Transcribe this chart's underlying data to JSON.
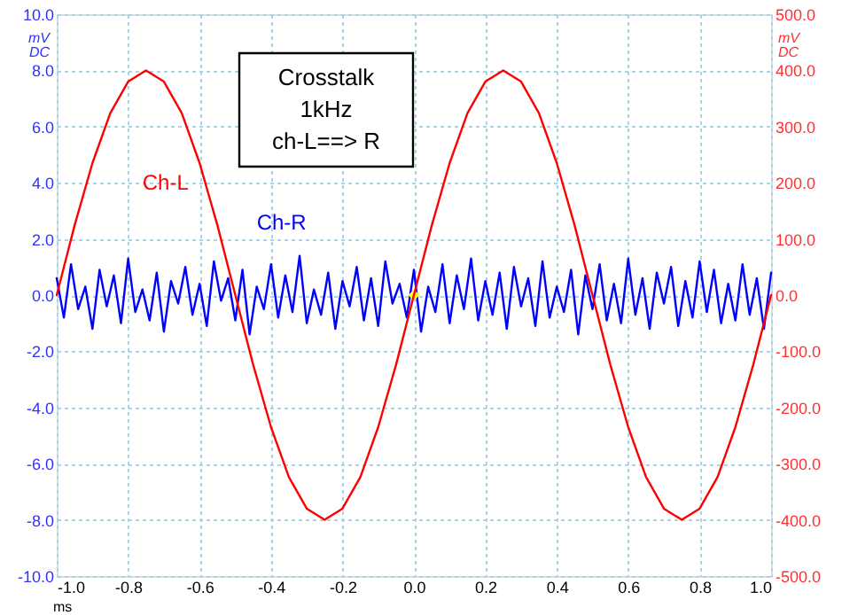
{
  "chart_data": {
    "type": "line",
    "annotations": [
      "Crosstalk",
      "1kHz",
      "ch-L==> R"
    ],
    "xlabel": "ms",
    "ylabel": "mV DC",
    "y2label": "mV DC",
    "xlim": [
      -1.0,
      1.0
    ],
    "xticks": [
      {
        "value": -1.0,
        "label": "-1.0"
      },
      {
        "value": -0.8,
        "label": "-0.8"
      },
      {
        "value": -0.6,
        "label": "-0.6"
      },
      {
        "value": -0.4,
        "label": "-0.4"
      },
      {
        "value": -0.2,
        "label": "-0.2"
      },
      {
        "value": 0,
        "label": "0.0"
      },
      {
        "value": 0.2,
        "label": "0.2"
      },
      {
        "value": 0.4,
        "label": "0.4"
      },
      {
        "value": 0.6,
        "label": "0.6"
      },
      {
        "value": 0.8,
        "label": "0.8"
      },
      {
        "value": 1.0,
        "label": "1.0"
      }
    ],
    "ylim": [
      -10,
      10
    ],
    "yticks": [
      {
        "value": -10,
        "label": "-10.0"
      },
      {
        "value": -8,
        "label": "-8.0"
      },
      {
        "value": -6,
        "label": "-6.0"
      },
      {
        "value": -4,
        "label": "-4.0"
      },
      {
        "value": -2,
        "label": "-2.0"
      },
      {
        "value": 0,
        "label": "0.0"
      },
      {
        "value": 2,
        "label": "2.0"
      },
      {
        "value": 4,
        "label": "4.0"
      },
      {
        "value": 6,
        "label": "6.0"
      },
      {
        "value": 8,
        "label": "8.0"
      },
      {
        "value": 10,
        "label": "10.0"
      }
    ],
    "y2lim": [
      -500,
      500
    ],
    "y2ticks": [
      {
        "value": -500,
        "label": "-500.0"
      },
      {
        "value": -400,
        "label": "-400.0"
      },
      {
        "value": -300,
        "label": "-300.0"
      },
      {
        "value": -200,
        "label": "-200.0"
      },
      {
        "value": -100,
        "label": "-100.0"
      },
      {
        "value": 0,
        "label": "0.0"
      },
      {
        "value": 100,
        "label": "100.0"
      },
      {
        "value": 200,
        "label": "200.0"
      },
      {
        "value": 300,
        "label": "300.0"
      },
      {
        "value": 400,
        "label": "400.0"
      },
      {
        "value": 500,
        "label": "500.0"
      }
    ],
    "grid": true,
    "line_style": "solid",
    "marker": "none",
    "series": [
      {
        "name": "Ch-L",
        "color": "#ff0000",
        "axis": "y2",
        "x": [
          -1.0,
          -0.95,
          -0.9,
          -0.85,
          -0.8,
          -0.75,
          -0.7,
          -0.65,
          -0.6,
          -0.55,
          -0.5,
          -0.45,
          -0.4,
          -0.35,
          -0.3,
          -0.25,
          -0.2,
          -0.15,
          -0.1,
          -0.05,
          0,
          0.05,
          0.1,
          0.15,
          0.2,
          0.25,
          0.3,
          0.35,
          0.4,
          0.45,
          0.5,
          0.55,
          0.6,
          0.65,
          0.7,
          0.75,
          0.8,
          0.85,
          0.9,
          0.95,
          1.0
        ],
        "values": [
          0,
          124,
          235,
          324,
          380,
          400,
          380,
          324,
          235,
          124,
          0,
          -124,
          -235,
          -324,
          -380,
          -400,
          -380,
          -324,
          -235,
          -124,
          0,
          124,
          235,
          324,
          380,
          400,
          380,
          324,
          235,
          124,
          0,
          -124,
          -235,
          -324,
          -380,
          -400,
          -380,
          -324,
          -235,
          -124,
          0
        ]
      },
      {
        "name": "Ch-R",
        "color": "#0000ff",
        "x": [
          -1.0,
          -0.98,
          -0.96,
          -0.94,
          -0.92,
          -0.9,
          -0.88,
          -0.86,
          -0.84,
          -0.82,
          -0.8,
          -0.78,
          -0.76,
          -0.74,
          -0.72,
          -0.7,
          -0.68,
          -0.66,
          -0.64,
          -0.62,
          -0.6,
          -0.58,
          -0.56,
          -0.54,
          -0.52,
          -0.5,
          -0.48,
          -0.46,
          -0.44,
          -0.42,
          -0.4,
          -0.38,
          -0.36,
          -0.34,
          -0.32,
          -0.3,
          -0.28,
          -0.26,
          -0.24,
          -0.22,
          -0.2,
          -0.18,
          -0.16,
          -0.14,
          -0.12,
          -0.1,
          -0.08,
          -0.06,
          -0.04,
          -0.02,
          0,
          0.02,
          0.04,
          0.06,
          0.08,
          0.1,
          0.12,
          0.14,
          0.16,
          0.18,
          0.2,
          0.22,
          0.24,
          0.26,
          0.28,
          0.3,
          0.32,
          0.34,
          0.36,
          0.38,
          0.4,
          0.42,
          0.44,
          0.46,
          0.48,
          0.5,
          0.52,
          0.54,
          0.56,
          0.58,
          0.6,
          0.62,
          0.64,
          0.66,
          0.68,
          0.7,
          0.72,
          0.74,
          0.76,
          0.78,
          0.8,
          0.82,
          0.84,
          0.86,
          0.88,
          0.9,
          0.92,
          0.94,
          0.96,
          0.98,
          1.0
        ],
        "values": [
          0.6,
          -0.8,
          1.1,
          -0.5,
          0.3,
          -1.2,
          0.9,
          -0.4,
          0.7,
          -1.0,
          1.3,
          -0.6,
          0.2,
          -0.9,
          0.8,
          -1.3,
          0.5,
          -0.3,
          1.0,
          -0.7,
          0.4,
          -1.1,
          1.2,
          -0.2,
          0.6,
          -0.9,
          0.9,
          -1.4,
          0.3,
          -0.5,
          1.1,
          -0.8,
          0.7,
          -0.6,
          1.4,
          -1.0,
          0.2,
          -0.7,
          0.8,
          -1.2,
          0.5,
          -0.4,
          1.0,
          -0.9,
          0.6,
          -1.1,
          1.2,
          -0.3,
          0.4,
          -0.8,
          0.9,
          -1.3,
          0.3,
          -0.6,
          1.1,
          -1.0,
          0.7,
          -0.5,
          1.3,
          -0.9,
          0.5,
          -0.7,
          0.8,
          -1.2,
          1.0,
          -0.4,
          0.6,
          -1.1,
          1.2,
          -0.8,
          0.3,
          -0.6,
          0.9,
          -1.4,
          0.7,
          -0.5,
          1.1,
          -0.9,
          0.4,
          -1.0,
          1.3,
          -0.7,
          0.6,
          -1.2,
          0.8,
          -0.3,
          1.0,
          -1.1,
          0.5,
          -0.8,
          1.2,
          -0.6,
          0.9,
          -1.0,
          0.4,
          -0.9,
          1.1,
          -0.7,
          0.6,
          -1.2,
          0.8
        ]
      },
      {
        "type": "scatter",
        "marker": "diamond",
        "color": "#ffff00",
        "x": [
          0
        ],
        "values": [
          0
        ]
      }
    ]
  }
}
